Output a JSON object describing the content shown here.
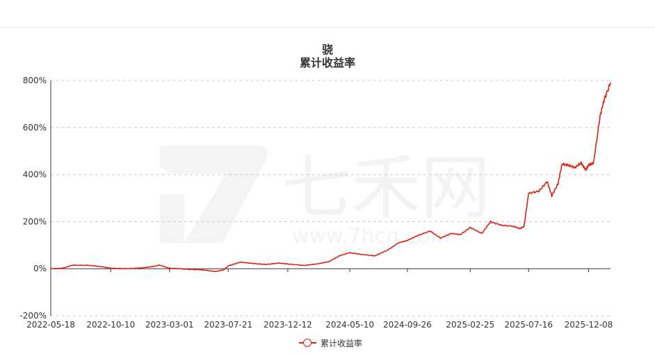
{
  "chart_data": {
    "type": "line",
    "title": "骁",
    "subtitle": "累计收益率",
    "x_tick_labels": [
      "2022-05-18",
      "2022-10-10",
      "2023-03-01",
      "2023-07-21",
      "2023-12-12",
      "2024-05-10",
      "2024-09-26",
      "2025-02-25",
      "2025-07-16",
      "2025-12-08"
    ],
    "y_tick_labels": [
      "-200%",
      "0%",
      "200%",
      "400%",
      "600%",
      "800%"
    ],
    "ylim": [
      -200,
      800
    ],
    "grid": true,
    "legend_position": "bottom",
    "series": [
      {
        "name": "累计收益率",
        "color": "#dd1f14",
        "x": [
          "2022-05-18",
          "2022-06-15",
          "2022-07-10",
          "2022-08-20",
          "2022-09-20",
          "2022-10-10",
          "2022-11-20",
          "2022-12-20",
          "2023-01-15",
          "2023-02-05",
          "2023-03-01",
          "2023-04-10",
          "2023-05-20",
          "2023-06-20",
          "2023-07-10",
          "2023-07-21",
          "2023-08-20",
          "2023-09-20",
          "2023-10-20",
          "2023-11-20",
          "2023-12-12",
          "2024-01-20",
          "2024-02-20",
          "2024-03-20",
          "2024-04-15",
          "2024-05-10",
          "2024-06-10",
          "2024-07-10",
          "2024-08-10",
          "2024-09-05",
          "2024-09-26",
          "2024-10-20",
          "2024-11-20",
          "2024-12-15",
          "2025-01-10",
          "2025-02-01",
          "2025-02-25",
          "2025-03-25",
          "2025-04-15",
          "2025-05-10",
          "2025-06-10",
          "2025-06-25",
          "2025-07-05",
          "2025-07-16",
          "2025-08-10",
          "2025-08-30",
          "2025-09-10",
          "2025-09-25",
          "2025-10-05",
          "2025-10-20",
          "2025-11-05",
          "2025-11-20",
          "2025-12-01",
          "2025-12-08",
          "2025-12-20",
          "2026-01-05",
          "2026-01-15",
          "2026-01-30"
        ],
        "values": [
          0,
          2,
          15,
          14,
          8,
          2,
          0,
          3,
          8,
          15,
          2,
          -2,
          -5,
          -12,
          -5,
          12,
          28,
          22,
          18,
          24,
          20,
          14,
          20,
          30,
          55,
          68,
          60,
          55,
          80,
          110,
          120,
          140,
          160,
          130,
          150,
          145,
          175,
          150,
          200,
          185,
          180,
          170,
          180,
          320,
          330,
          370,
          310,
          360,
          445,
          440,
          430,
          450,
          420,
          440,
          450,
          650,
          720,
          790
        ]
      }
    ]
  }
}
